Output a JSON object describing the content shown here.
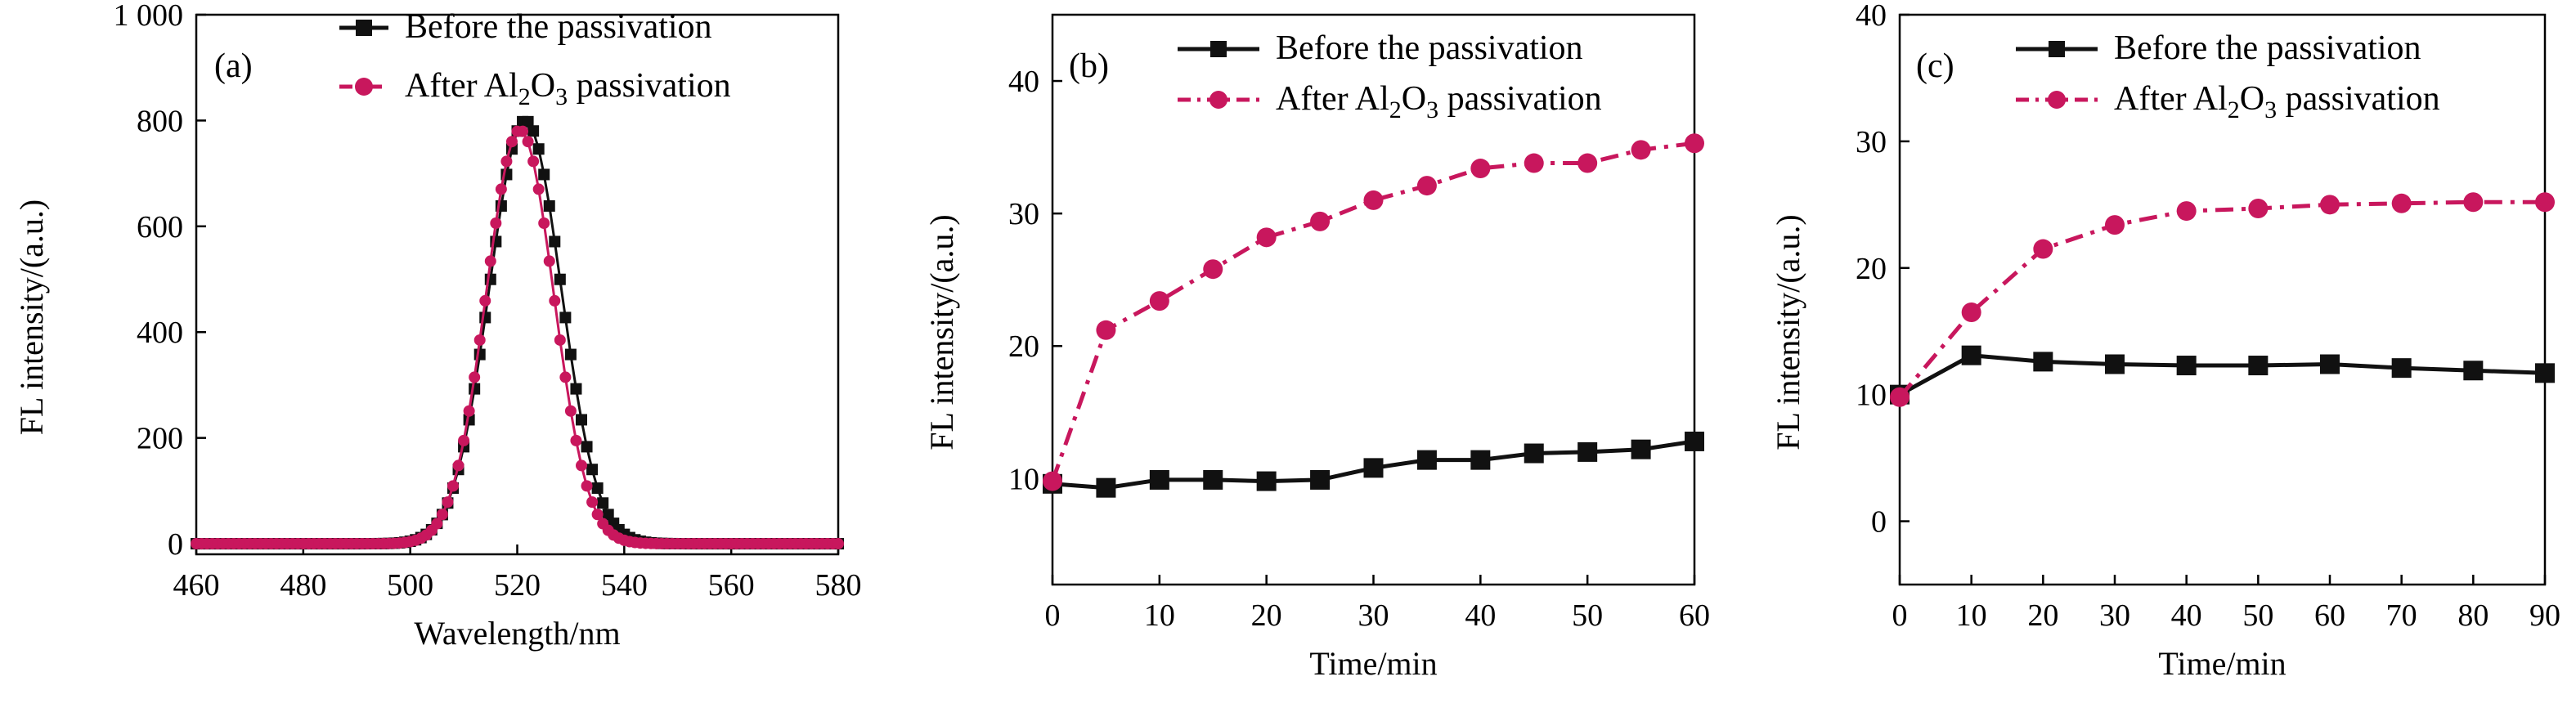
{
  "colors": {
    "before": "#111111",
    "after": "#c8175d",
    "axis": "#000000"
  },
  "legend": {
    "before_label": "Before the passivation",
    "after_prefix": "After Al",
    "after_sub1": "2",
    "after_mid": "O",
    "after_sub2": "3",
    "after_suffix": " passivation"
  },
  "chart_data": [
    {
      "type": "line",
      "panel_label": "(a)",
      "xlabel": "Wavelength/nm",
      "ylabel": "FL intensity/(a.u.)",
      "xlim": [
        460,
        580
      ],
      "ylim": [
        -20,
        1000
      ],
      "xticks": [
        460,
        480,
        500,
        520,
        540,
        560,
        580
      ],
      "yticks": [
        0,
        200,
        400,
        600,
        800,
        1000
      ],
      "ytick_labels": [
        "0",
        "200",
        "400",
        "600",
        "800",
        "1 000"
      ],
      "legend_position": "top-right",
      "series": [
        {
          "name": "Before the passivation",
          "key": "before",
          "marker": "square",
          "peak_center": 521.5,
          "peak_height": 800,
          "peak_width": 6.7,
          "x_range": [
            460,
            580
          ]
        },
        {
          "name": "After Al2O3 passivation",
          "key": "after",
          "marker": "circle",
          "peak_center": 520.5,
          "peak_height": 782,
          "peak_width": 6.3,
          "x_range": [
            460,
            580
          ]
        }
      ]
    },
    {
      "type": "line",
      "panel_label": "(b)",
      "xlabel": "Time/min",
      "ylabel": "FL intensity/(a.u.)",
      "xlim": [
        0,
        60
      ],
      "ylim": [
        2,
        45
      ],
      "xticks": [
        0,
        10,
        20,
        30,
        40,
        50,
        60
      ],
      "yticks": [
        10,
        20,
        30,
        40
      ],
      "ytick_labels": [
        "10",
        "20",
        "30",
        "40"
      ],
      "legend_position": "top-right",
      "series": [
        {
          "name": "Before the passivation",
          "key": "before",
          "marker": "square",
          "x": [
            0,
            5,
            10,
            15,
            20,
            25,
            30,
            35,
            40,
            45,
            50,
            55,
            60
          ],
          "y": [
            9.6,
            9.3,
            9.9,
            9.9,
            9.8,
            9.9,
            10.8,
            11.4,
            11.4,
            11.9,
            12.0,
            12.2,
            12.8
          ]
        },
        {
          "name": "After Al2O3 passivation",
          "key": "after",
          "marker": "circle",
          "x": [
            0,
            5,
            10,
            15,
            20,
            25,
            30,
            35,
            40,
            45,
            50,
            55,
            60
          ],
          "y": [
            9.8,
            21.2,
            23.4,
            25.8,
            28.2,
            29.4,
            31.0,
            32.1,
            33.4,
            33.8,
            33.8,
            34.8,
            35.3
          ]
        }
      ]
    },
    {
      "type": "line",
      "panel_label": "(c)",
      "xlabel": "Time/min",
      "ylabel": "FL intensity/(a.u.)",
      "xlim": [
        0,
        90
      ],
      "ylim": [
        -5,
        40
      ],
      "xticks": [
        0,
        10,
        20,
        30,
        40,
        50,
        60,
        70,
        80,
        90
      ],
      "yticks": [
        0,
        10,
        20,
        30,
        40
      ],
      "ytick_labels": [
        "0",
        "10",
        "20",
        "30",
        "40"
      ],
      "legend_position": "top-right",
      "series": [
        {
          "name": "Before the passivation",
          "key": "before",
          "marker": "square",
          "x": [
            0,
            10,
            20,
            30,
            40,
            50,
            60,
            70,
            80,
            90
          ],
          "y": [
            10.0,
            13.1,
            12.6,
            12.4,
            12.3,
            12.3,
            12.4,
            12.1,
            11.9,
            11.7
          ]
        },
        {
          "name": "After Al2O3 passivation",
          "key": "after",
          "marker": "circle",
          "x": [
            0,
            10,
            20,
            30,
            40,
            50,
            60,
            70,
            80,
            90
          ],
          "y": [
            9.8,
            16.5,
            21.5,
            23.4,
            24.5,
            24.7,
            25.0,
            25.1,
            25.2,
            25.2
          ]
        }
      ]
    }
  ]
}
